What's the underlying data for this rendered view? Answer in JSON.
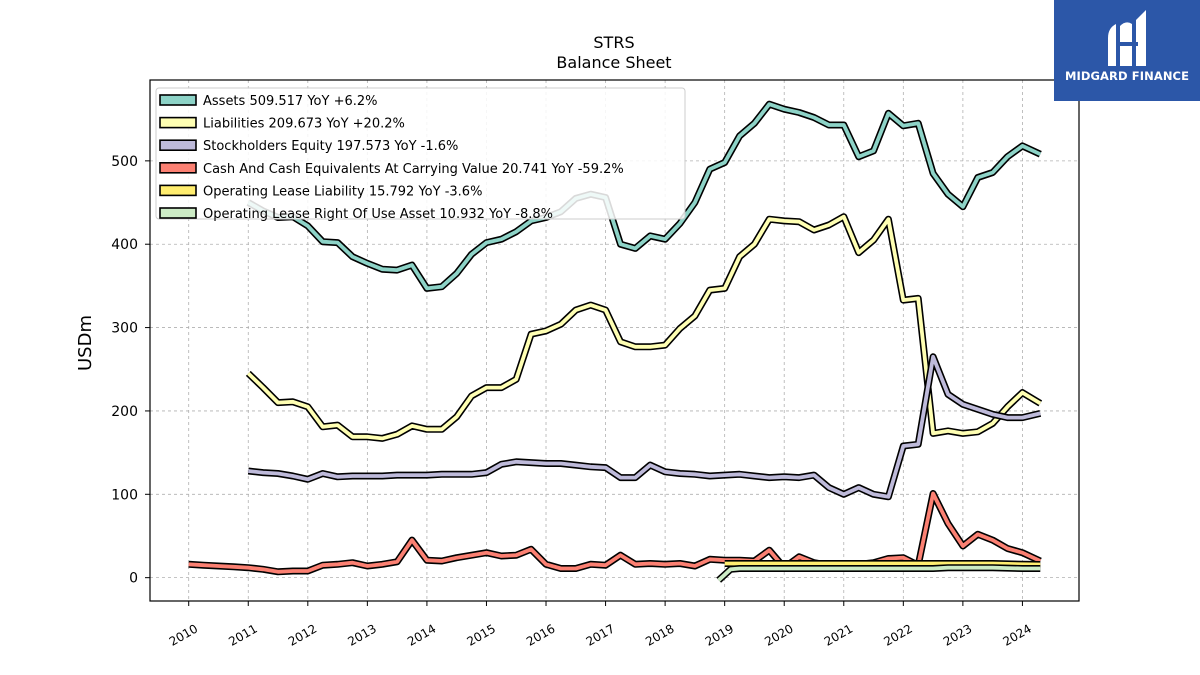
{
  "logo": {
    "text": "MIDGARD FINANCE"
  },
  "chart_data": {
    "type": "line",
    "title": "STRS",
    "subtitle": "Balance  Sheet",
    "xlabel": "",
    "ylabel": "USDm",
    "xlim": [
      2009.35,
      2024.95
    ],
    "ylim": [
      -28,
      597
    ],
    "yticks": [
      0,
      100,
      200,
      300,
      400,
      500
    ],
    "xticks": [
      "2010",
      "2011",
      "2012",
      "2013",
      "2014",
      "2015",
      "2016",
      "2017",
      "2018",
      "2019",
      "2020",
      "2021",
      "2022",
      "2023",
      "2024"
    ],
    "grid": true,
    "legend_position": "top-left",
    "series": [
      {
        "name": "Assets  509.517 YoY +6.2%",
        "color": "#8dd3c7",
        "x": [
          2011.0,
          2011.25,
          2011.5,
          2011.75,
          2012.0,
          2012.25,
          2012.5,
          2012.75,
          2013.0,
          2013.25,
          2013.5,
          2013.75,
          2014.0,
          2014.25,
          2014.5,
          2014.75,
          2015.0,
          2015.25,
          2015.5,
          2015.75,
          2016.0,
          2016.25,
          2016.5,
          2016.75,
          2017.0,
          2017.25,
          2017.5,
          2017.75,
          2018.0,
          2018.25,
          2018.5,
          2018.75,
          2019.0,
          2019.25,
          2019.5,
          2019.75,
          2020.0,
          2020.25,
          2020.5,
          2020.75,
          2021.0,
          2021.25,
          2021.5,
          2021.75,
          2022.0,
          2022.25,
          2022.5,
          2022.75,
          2023.0,
          2023.25,
          2023.5,
          2023.75,
          2024.0,
          2024.3
        ],
        "y": [
          450,
          440,
          432,
          433,
          422,
          403,
          402,
          385,
          377,
          370,
          369,
          375,
          347,
          349,
          365,
          388,
          402,
          406,
          415,
          428,
          432,
          439,
          455,
          460,
          456,
          400,
          395,
          410,
          406,
          425,
          450,
          490,
          498,
          530,
          545,
          568,
          562,
          558,
          552,
          543,
          543,
          505,
          512,
          557,
          542,
          545,
          485,
          460,
          445,
          480,
          486,
          505,
          518,
          508
        ]
      },
      {
        "name": "Liabilities  209.673 YoY +20.2%",
        "color": "#ffffb3",
        "x": [
          2011.0,
          2011.25,
          2011.5,
          2011.75,
          2012.0,
          2012.25,
          2012.5,
          2012.75,
          2013.0,
          2013.25,
          2013.5,
          2013.75,
          2014.0,
          2014.25,
          2014.5,
          2014.75,
          2015.0,
          2015.25,
          2015.5,
          2015.75,
          2016.0,
          2016.25,
          2016.5,
          2016.75,
          2017.0,
          2017.25,
          2017.5,
          2017.75,
          2018.0,
          2018.25,
          2018.5,
          2018.75,
          2019.0,
          2019.25,
          2019.5,
          2019.75,
          2020.0,
          2020.25,
          2020.5,
          2020.75,
          2021.0,
          2021.25,
          2021.5,
          2021.75,
          2022.0,
          2022.25,
          2022.5,
          2022.75,
          2023.0,
          2023.25,
          2023.5,
          2023.75,
          2024.0,
          2024.3
        ],
        "y": [
          245,
          228,
          210,
          211,
          205,
          181,
          183,
          169,
          169,
          167,
          172,
          182,
          178,
          178,
          193,
          218,
          228,
          228,
          238,
          292,
          296,
          304,
          321,
          327,
          321,
          283,
          277,
          277,
          279,
          299,
          314,
          345,
          347,
          385,
          400,
          430,
          428,
          427,
          417,
          423,
          433,
          390,
          405,
          430,
          333,
          335,
          173,
          176,
          173,
          175,
          185,
          205,
          222,
          209
        ]
      },
      {
        "name": "Stockholders Equity  197.573 YoY -1.6%",
        "color": "#bebada",
        "x": [
          2011.0,
          2011.25,
          2011.5,
          2011.75,
          2012.0,
          2012.25,
          2012.5,
          2012.75,
          2013.0,
          2013.25,
          2013.5,
          2013.75,
          2014.0,
          2014.25,
          2014.5,
          2014.75,
          2015.0,
          2015.25,
          2015.5,
          2015.75,
          2016.0,
          2016.25,
          2016.5,
          2016.75,
          2017.0,
          2017.25,
          2017.5,
          2017.75,
          2018.0,
          2018.25,
          2018.5,
          2018.75,
          2019.0,
          2019.25,
          2019.5,
          2019.75,
          2020.0,
          2020.25,
          2020.5,
          2020.75,
          2021.0,
          2021.25,
          2021.5,
          2021.75,
          2022.0,
          2022.25,
          2022.5,
          2022.75,
          2023.0,
          2023.25,
          2023.5,
          2023.75,
          2024.0,
          2024.3
        ],
        "y": [
          128,
          126,
          125,
          122,
          118,
          125,
          121,
          122,
          122,
          122,
          123,
          123,
          123,
          124,
          124,
          124,
          126,
          136,
          139,
          138,
          137,
          137,
          135,
          133,
          132,
          120,
          120,
          135,
          127,
          125,
          124,
          122,
          123,
          124,
          122,
          120,
          121,
          120,
          123,
          108,
          100,
          108,
          100,
          97,
          158,
          160,
          265,
          220,
          208,
          202,
          196,
          192,
          192,
          197
        ]
      },
      {
        "name": "Cash And Cash Equivalents At Carrying Value  20.741 YoY -59.2%",
        "color": "#fb8072",
        "x": [
          2010.0,
          2010.25,
          2010.5,
          2010.75,
          2011.0,
          2011.25,
          2011.5,
          2011.75,
          2012.0,
          2012.25,
          2012.5,
          2012.75,
          2013.0,
          2013.25,
          2013.5,
          2013.75,
          2014.0,
          2014.25,
          2014.5,
          2014.75,
          2015.0,
          2015.25,
          2015.5,
          2015.75,
          2016.0,
          2016.25,
          2016.5,
          2016.75,
          2017.0,
          2017.25,
          2017.5,
          2017.75,
          2018.0,
          2018.25,
          2018.5,
          2018.75,
          2019.0,
          2019.25,
          2019.5,
          2019.75,
          2020.0,
          2020.25,
          2020.5,
          2020.75,
          2021.0,
          2021.25,
          2021.5,
          2021.75,
          2022.0,
          2022.25,
          2022.5,
          2022.75,
          2023.0,
          2023.25,
          2023.5,
          2023.75,
          2024.0,
          2024.3
        ],
        "y": [
          16,
          15,
          14,
          13,
          12,
          10,
          7,
          8,
          8,
          15,
          16,
          18,
          14,
          16,
          19,
          45,
          21,
          20,
          24,
          27,
          30,
          26,
          27,
          34,
          16,
          11,
          11,
          16,
          15,
          27,
          16,
          17,
          16,
          17,
          14,
          22,
          21,
          21,
          20,
          33,
          12,
          25,
          18,
          15,
          16,
          16,
          18,
          23,
          24,
          15,
          101,
          65,
          38,
          52,
          45,
          35,
          30,
          20
        ]
      },
      {
        "name": "Operating Lease Liability  15.792 YoY -3.6%",
        "color": "#ffed6f",
        "x": [
          2019.0,
          2019.25,
          2019.5,
          2019.75,
          2020.0,
          2020.25,
          2020.5,
          2020.75,
          2021.0,
          2021.25,
          2021.5,
          2021.75,
          2022.0,
          2022.25,
          2022.5,
          2022.75,
          2023.0,
          2023.25,
          2023.5,
          2023.75,
          2024.0,
          2024.3
        ],
        "y": [
          17,
          17,
          17,
          17,
          17,
          17,
          17,
          17,
          17,
          17,
          17,
          17,
          17,
          17,
          17,
          17,
          17,
          17,
          17,
          16.5,
          16,
          15.8
        ]
      },
      {
        "name": "Operating Lease Right Of Use Asset  10.932 YoY -8.8%",
        "color": "#ccebc5",
        "x": [
          2018.9,
          2019.1,
          2019.25,
          2019.5,
          2019.75,
          2020.0,
          2020.25,
          2020.5,
          2020.75,
          2021.0,
          2021.25,
          2021.5,
          2021.75,
          2022.0,
          2022.25,
          2022.5,
          2022.75,
          2023.0,
          2023.25,
          2023.5,
          2023.75,
          2024.0,
          2024.3
        ],
        "y": [
          -3,
          10,
          11,
          11,
          11,
          11,
          11,
          11,
          11,
          11,
          11,
          11,
          11,
          11,
          11,
          11,
          12,
          12,
          12,
          12,
          11.5,
          11,
          11
        ]
      }
    ]
  }
}
